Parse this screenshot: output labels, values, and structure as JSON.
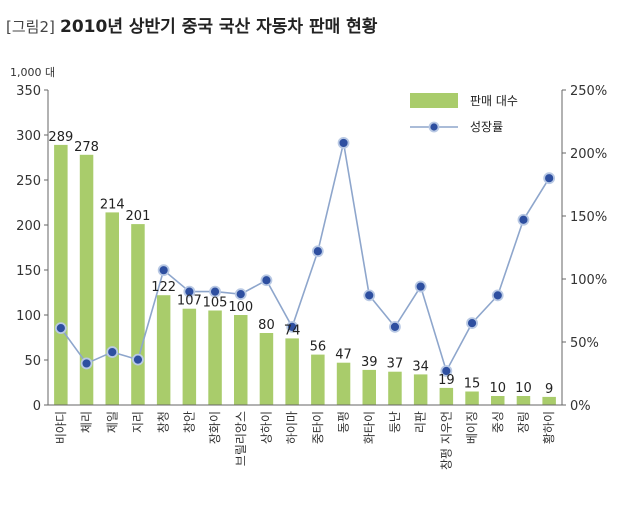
{
  "title": {
    "prefix": "[그림2]",
    "text": "2010년 상반기 중국 국산 자동차 판매 현황"
  },
  "colors": {
    "bar": "#a9cc6b",
    "line": "#8ea6cc",
    "marker_fill": "#2e4fa0",
    "marker_ring": "#b9c9e4",
    "axis": "#666666"
  },
  "chart_data": {
    "type": "bar",
    "categories": [
      "비야디",
      "체리",
      "제일",
      "지리",
      "창청",
      "창안",
      "장화이",
      "브릴리앙스",
      "상하이",
      "하이마",
      "중타이",
      "동펑",
      "화타이",
      "둥난",
      "리판",
      "창펑 지우언",
      "베이징",
      "중싱",
      "장링",
      "황하이"
    ],
    "series": [
      {
        "name": "판매 대수",
        "type": "bar",
        "axis": "left",
        "values": [
          289,
          278,
          214,
          201,
          122,
          107,
          105,
          100,
          80,
          74,
          56,
          47,
          39,
          37,
          34,
          19,
          15,
          10,
          10,
          9
        ]
      },
      {
        "name": "성장률",
        "type": "line",
        "axis": "right",
        "values": [
          61,
          33,
          42,
          36,
          107,
          90,
          90,
          88,
          99,
          62,
          122,
          208,
          87,
          62,
          94,
          27,
          65,
          87,
          147,
          180
        ]
      }
    ],
    "y_unit": "1,000 대",
    "ylim": [
      0,
      350
    ],
    "yticks": [
      0,
      50,
      100,
      150,
      200,
      250,
      300,
      350
    ],
    "y2lim": [
      0,
      250
    ],
    "y2ticks": [
      "0%",
      "50%",
      "100%",
      "150%",
      "200%",
      "250%"
    ],
    "legend_position": "top-right",
    "grid": false
  }
}
